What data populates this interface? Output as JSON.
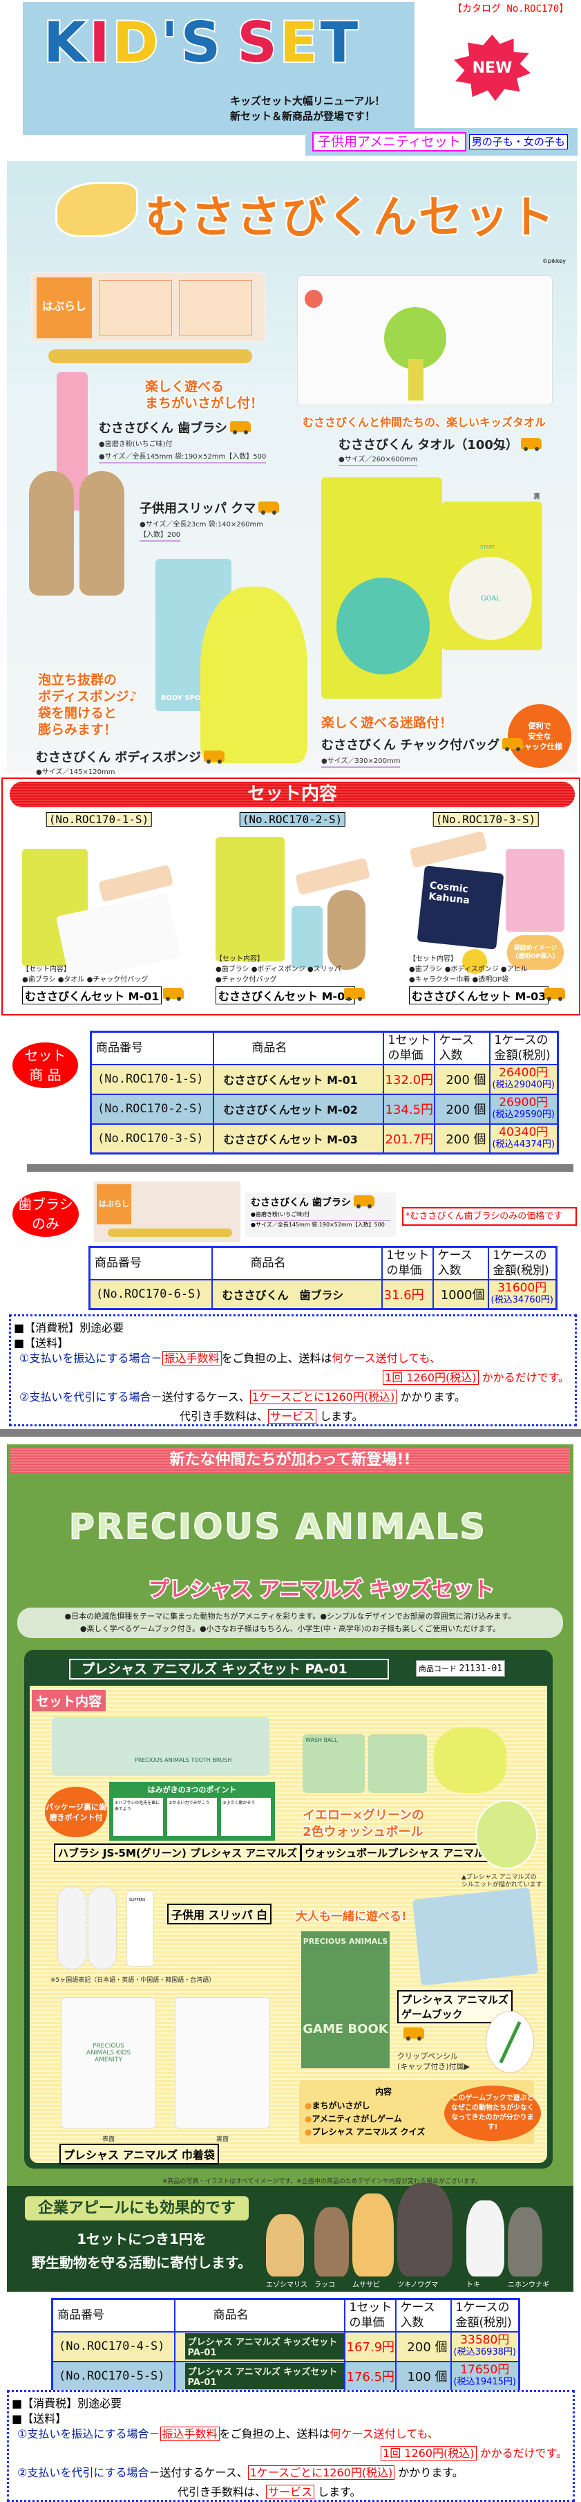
{
  "header": {
    "catalog_no": "【カタログ No.ROC170】",
    "logo_letters": [
      "K",
      "I",
      "D",
      "'",
      "S",
      " ",
      "S",
      "E",
      "T"
    ],
    "logo_colors": [
      "#1f6fb5",
      "#e8224e",
      "#f5c71c",
      "#1f6fb5",
      "#1f6fb5",
      "#fff",
      "#e8224e",
      "#f5c71c",
      "#1f6fb5"
    ],
    "subtitle_1": "キッズセット大幅リニューアル！",
    "subtitle_2": "新セット＆新商品が登場です！",
    "new_badge": "NEW",
    "category_label": "子供用アメニティセット",
    "target_label": "男の子も・女の子も"
  },
  "musasabi": {
    "title": "むささびくんセット",
    "copyright": "©pikkey",
    "toothbrush": {
      "catch_1": "楽しく遊べる",
      "catch_2": "まちがいさがし付！",
      "name": "むささびくん 歯ブラシ",
      "spec_1": "●歯磨き粉(いちご味)付",
      "spec_2": "●サイズ／全長145mm 袋:190×52mm【入数】500"
    },
    "towel": {
      "catch": "むささびくんと仲間たちの、楽しいキッズタオル",
      "name": "むささびくん タオル（100匁）",
      "spec": "●サイズ／260×600mm"
    },
    "slipper": {
      "name": "子供用スリッパ クマ",
      "spec_1": "●サイズ／全長23cm 袋:140×260mm",
      "spec_2": "【入数】200"
    },
    "sponge": {
      "catch": [
        "泡立ち抜群の",
        "ボディスポンジ♪",
        "袋を開けると",
        "膨らみます！"
      ],
      "name": "むささびくん ボディスポンジ",
      "spec": "●サイズ／145×120mm",
      "package_text": "BODY SPONGE"
    },
    "bag": {
      "front": "表",
      "back": "裏",
      "catch": "楽しく遊べる迷路付！",
      "name": "むささびくん チャック付バッグ",
      "spec": "●サイズ／330×200mm",
      "badge": [
        "便利で",
        "安全な",
        "チャック仕様"
      ],
      "maze_goal": "GOAL",
      "maze_start": "START"
    }
  },
  "set_contents": {
    "title": "セット内容",
    "sets": [
      {
        "code": "(No.ROC170-1-S)",
        "heading": "【セット内容】",
        "items": [
          "●歯ブラシ ●タオル ●チャック付バッグ"
        ],
        "name": "むささびくんセット M-01",
        "bg": "#f8ecb2"
      },
      {
        "code": "(No.ROC170-2-S)",
        "heading": "【セット内容】",
        "items": [
          "●歯ブラシ ●ボディスポンジ ●スリッパ",
          "●チャック付バッグ"
        ],
        "name": "むささびくんセット M-02",
        "bg": "#cfe9ea"
      },
      {
        "code": "(No.ROC170-3-S)",
        "heading": "【セット内容】",
        "items": [
          "●歯ブラシ ●ボディスポンジ ●アヒル",
          "●キャラクター巾着 ●透明OP袋"
        ],
        "name": "むささびくんセット M-03",
        "bg": "#f8ecb2",
        "bubble": "袋詰めイメージ（透明OP袋入）",
        "pouch_text": "Cosmic Kahuna"
      }
    ]
  },
  "table_headers": {
    "code": "商品番号",
    "name": "商品名",
    "unit_1": "1セット",
    "unit_2": "の単価",
    "case_1": "ケース",
    "case_2": "入数",
    "amount_1": "1ケースの",
    "amount_2": "金額(税別)"
  },
  "set_table": {
    "badge_1": "セット",
    "badge_2": "商 品",
    "rows": [
      {
        "code": "(No.ROC170-1-S)",
        "name": "むささびくんセット M-01",
        "unit": "132.0円",
        "qty": "200 個",
        "amount": "26400円",
        "tax": "(税込29040円)"
      },
      {
        "code": "(No.ROC170-2-S)",
        "name": "むささびくんセット M-02",
        "unit": "134.5円",
        "qty": "200 個",
        "amount": "26900円",
        "tax": "(税込29590円)"
      },
      {
        "code": "(No.ROC170-3-S)",
        "name": "むささびくんセット M-03",
        "unit": "201.7円",
        "qty": "200 個",
        "amount": "40340円",
        "tax": "(税込44374円)"
      }
    ]
  },
  "toothbrush_only": {
    "badge_1": "歯ブラシ",
    "badge_2": "のみ",
    "name": "むささびくん 歯ブラシ",
    "spec_1": "●歯磨き粉(いちご味)付",
    "spec_2": "●サイズ／全長145mm 袋:190×52mm【入数】500",
    "package_text": "はぶらし",
    "note": "*むささびくん歯ブラシのみの価格です",
    "rows": [
      {
        "code": "(No.ROC170-6-S)",
        "name": "むささびくん　歯ブラシ",
        "unit": "31.6円",
        "qty": "1000個",
        "amount": "31600円",
        "tax": "(税込34760円)"
      }
    ]
  },
  "notes": {
    "tax": "■【消費税】別途必要",
    "shipping": "■【送料】",
    "p1_lead": "①支払いを振込にする場合－",
    "p1_box": "振込手数料",
    "p1_mid": "をご負担の上、送料は",
    "p1_red": "何ケース送付しても、",
    "p1_box2": "1回 1260円(税込)",
    "p1_end": "かかるだけです。",
    "p2_lead": "②支払いを代引にする場合",
    "p2_mid": "－送付するケース、",
    "p2_box": "1ケースごとに1260円(税込)",
    "p2_end": "かかります。",
    "p3_lead": "代引き手数料は、",
    "p3_box": "サービス",
    "p3_end": "します。"
  },
  "precious": {
    "band": "新たな仲間たちが加わって新登場!!",
    "title_en": "PRECIOUS ANIMALS",
    "title_jp": "プレシャス アニマルズ キッズセット",
    "desc_1": "●日本の絶滅危惧種をテーマに集まった動物たちがアメニティを彩ります。●シンプルなデザインでお部屋の雰囲気に溶け込みます。",
    "desc_2": "●楽しく学べるゲームブック付き。●小さなお子様はもちろん、小学生(中・高学年)のお子様も楽しくご使用いただけます。",
    "set_title": "プレシャス アニマルズ キッズセット PA-01",
    "code_label": "商品コード",
    "code_value": "21131-01",
    "set_label": "セット内容",
    "toothbrush": {
      "badge": "パッケージ裏に歯磨きポイント付",
      "points_title": "はみがきの3つのポイント",
      "points": [
        "①ハブラシの毛先を歯にあてよう",
        "②かるい力でみがこう",
        "③小さく動かそう"
      ],
      "label": "ハブラシ JS-5M(グリーン) プレシャス アニマルズ",
      "package_text": "PRECIOUS ANIMALS TOOTH BRUSH"
    },
    "washball": {
      "catch_1": "イエロー×グリーンの",
      "catch_2": "2色ウォッシュボール",
      "label": "ウォッシュボールプレシャス アニマルズ",
      "caption_1": "▲プレシャス アニマルズの",
      "caption_2": "シルエットが描かれています",
      "package_text": "WASH BALL"
    },
    "slipper": {
      "label": "子供用 スリッパ 白",
      "note": "※5ヶ国語表記（日本語・英語・中国語・韓国語・台湾語）",
      "package_text": "SLIPPERS"
    },
    "gamebook": {
      "catch": "大人も一緒に遊べる!",
      "cover_1": "PRECIOUS ANIMALS",
      "cover_2": "GAME BOOK",
      "label_1": "プレシャス アニマルズ",
      "label_2": "ゲームブック",
      "pencil_1": "クリップペンシル",
      "pencil_2": "(キャップ付き)付属▶",
      "contents_title": "内容",
      "contents": [
        "まちがいさがし",
        "アメニティさがしゲーム",
        "プレシャス アニマルズ クイズ"
      ],
      "bubble": "このゲームブックで遊ぶとなぜこの動物たちが少なくなってきたのかが分かります!"
    },
    "pouch": {
      "front": "表面",
      "back": "裏面",
      "label": "プレシャス アニマルズ 巾着袋",
      "print": "PRECIOUS ANIMALS KIDS AMENITY"
    },
    "disclaimer": "※商品の写真・イラストはすべてイメージです。※企画中の商品のためデザインや内容が変わる場合がございます。",
    "appeal": "企業アピールにも効果的です",
    "donate_1": "1セットにつき1円を",
    "donate_2": "野生動物を守る活動に寄付します。",
    "animals": [
      "エゾシマリス",
      "ラッコ",
      "ムササビ",
      "ツキノワグマ",
      "トキ",
      "ニホンウナギ"
    ]
  },
  "pa_table": {
    "rows": [
      {
        "code": "(No.ROC170-4-S)",
        "name": "プレシャス アニマルズ キッズセット PA-01",
        "unit": "167.9円",
        "qty": "200 個",
        "amount": "33580円",
        "tax": "(税込36938円)"
      },
      {
        "code": "(No.ROC170-5-S)",
        "name": "プレシャス アニマルズ キッズセット PA-01",
        "unit": "176.5円",
        "qty": "100 個",
        "amount": "17650円",
        "tax": "(税込19415円)"
      }
    ]
  },
  "colors": {
    "price_red": "#ff0000",
    "tax_blue": "#0000ff",
    "table_border": "#1a2ef5",
    "row_yellow": "#f5eeb0",
    "row_blue": "#a9cfe0"
  }
}
